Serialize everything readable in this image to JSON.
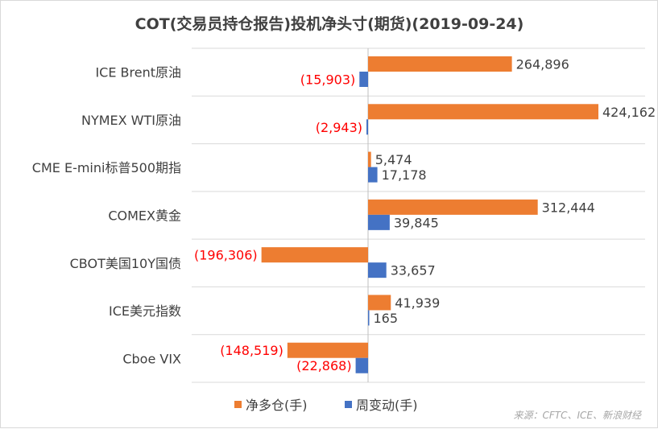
{
  "chart_data": {
    "type": "bar",
    "orientation": "horizontal",
    "title": "COT(交易员持仓报告)投机净头寸(期货)(2019-09-24)",
    "categories": [
      "ICE Brent原油",
      "NYMEX WTI原油",
      "CME E-mini标普500期指",
      "COMEX黄金",
      "CBOT美国10Y国债",
      "ICE美元指数",
      "Cboe VIX"
    ],
    "series": [
      {
        "name": "净多仓(手)",
        "color": "#ed7d31",
        "values": [
          264896,
          424162,
          5474,
          312444,
          -196306,
          41939,
          -148519
        ],
        "labels": [
          "264,896",
          "424,162",
          "5,474",
          "312,444",
          "(196,306)",
          "41,939",
          "(148,519)"
        ]
      },
      {
        "name": "周变动(手)",
        "color": "#4472c4",
        "values": [
          -15903,
          -2943,
          17178,
          39845,
          33657,
          165,
          -22868
        ],
        "labels": [
          "(15,903)",
          "(2,943)",
          "17,178",
          "39,845",
          "33,657",
          "165",
          "(22,868)"
        ]
      }
    ],
    "xlim": [
      -200000,
      450000
    ],
    "grid": "horizontal-category-separators",
    "legend_position": "bottom",
    "negative_label_color": "#ff0000",
    "source": "来源：CFTC、ICE、新浪财经"
  }
}
